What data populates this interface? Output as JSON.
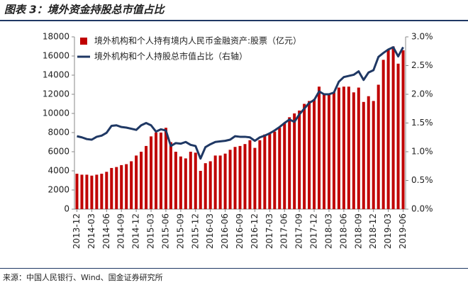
{
  "chart_data": {
    "type": "bar_line",
    "title": "图表 3：境外资金持股总市值占比",
    "source": "来源：中国人民银行、Wind、国金证券研究所",
    "categories": [
      "2013-12",
      null,
      null,
      "2014-03",
      null,
      null,
      "2014-06",
      null,
      null,
      "2014-09",
      null,
      null,
      "2014-12",
      null,
      null,
      "2015-03",
      null,
      null,
      "2015-06",
      null,
      null,
      "2015-09",
      null,
      null,
      "2015-12",
      null,
      null,
      "2016-03",
      null,
      null,
      "2016-06",
      null,
      null,
      "2016-09",
      null,
      null,
      "2016-12",
      null,
      null,
      "2017-03",
      null,
      null,
      "2017-06",
      null,
      null,
      "2017-09",
      null,
      null,
      "2017-12",
      null,
      null,
      "2018-03",
      null,
      null,
      "2018-06",
      null,
      null,
      "2018-09",
      null,
      null,
      "2018-12",
      null,
      null,
      "2019-03",
      null,
      null,
      "2019-06"
    ],
    "series": [
      {
        "name": "境外机构和个人持有境内人民币金融资产:股票（亿元）",
        "color": "#c00000",
        "type": "bar",
        "values": [
          3700,
          3600,
          3600,
          3500,
          3600,
          3700,
          3900,
          4300,
          4400,
          4600,
          4700,
          5000,
          5600,
          6000,
          6600,
          7600,
          8000,
          8000,
          8500,
          7000,
          6000,
          5500,
          5300,
          6000,
          5900,
          4000,
          4800,
          5000,
          5600,
          5600,
          5800,
          6200,
          6500,
          6600,
          6800,
          7200,
          6400,
          7200,
          7800,
          7900,
          8100,
          8500,
          9000,
          9600,
          10000,
          10300,
          11000,
          11300,
          11500,
          12800,
          12000,
          12000,
          12200,
          12700,
          12800,
          12800,
          12200,
          12700,
          11200,
          11800,
          11300,
          13000,
          15600,
          16700,
          17000,
          15200,
          16600
        ]
      },
      {
        "name": "境外机构和个人持股总市值占比（右轴）",
        "color": "#1f3864",
        "type": "line",
        "axis": "y2",
        "values": [
          1.27,
          1.25,
          1.22,
          1.21,
          1.26,
          1.28,
          1.33,
          1.45,
          1.46,
          1.43,
          1.42,
          1.4,
          1.38,
          1.46,
          1.5,
          1.46,
          1.35,
          1.39,
          1.37,
          1.1,
          1.15,
          1.14,
          1.17,
          1.12,
          1.1,
          0.88,
          1.08,
          1.13,
          1.17,
          1.18,
          1.19,
          1.21,
          1.27,
          1.26,
          1.26,
          1.25,
          1.19,
          1.25,
          1.28,
          1.32,
          1.37,
          1.43,
          1.5,
          1.56,
          1.52,
          1.65,
          1.75,
          1.85,
          1.9,
          2.05,
          2.0,
          2.0,
          2.03,
          2.22,
          2.3,
          2.32,
          2.34,
          2.4,
          2.25,
          2.38,
          2.42,
          2.65,
          2.72,
          2.78,
          2.82,
          2.66,
          2.82
        ]
      }
    ],
    "ylim": [
      0,
      18000
    ],
    "yticks": [
      0,
      2000,
      4000,
      6000,
      8000,
      10000,
      12000,
      14000,
      16000,
      18000
    ],
    "y2lim": [
      0,
      3
    ],
    "y2ticks": [
      {
        "value": 0,
        "label": "0.0%"
      },
      {
        "value": 0.5,
        "label": "0.5%"
      },
      {
        "value": 1,
        "label": "1.0%"
      },
      {
        "value": 1.5,
        "label": "1.5%"
      },
      {
        "value": 2,
        "label": "2.0%"
      },
      {
        "value": 2.5,
        "label": "2.5%"
      },
      {
        "value": 3,
        "label": "3.0%"
      }
    ],
    "legend": "top-left"
  }
}
